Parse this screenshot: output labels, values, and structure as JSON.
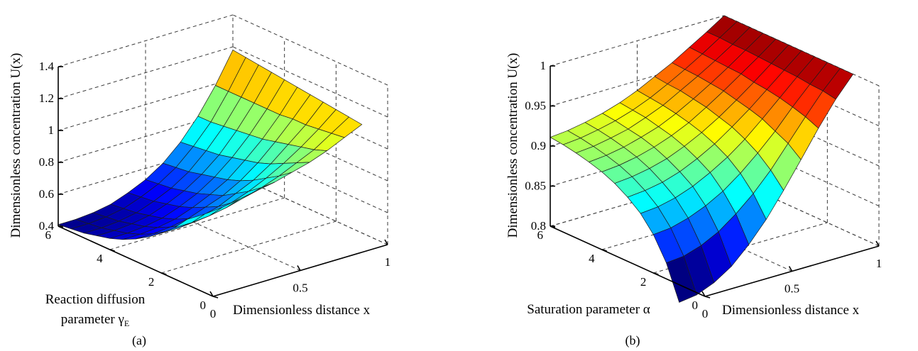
{
  "chart_data": [
    {
      "type": "surface",
      "caption": "(a)",
      "xlabel": "Dimensionless distance x",
      "ylabel": "Reaction diffusion parameter γE",
      "ylabel_lines": [
        "Reaction diffusion",
        "parameter γ"
      ],
      "ylabel_subscript": "E",
      "zlabel": "Dimensionless concentration U(x)",
      "x_ticks": [
        "0",
        "0.5",
        "1"
      ],
      "y_ticks": [
        "0",
        "2",
        "4",
        "6"
      ],
      "z_ticks": [
        "0.4",
        "0.6",
        "0.8",
        "1",
        "1.2",
        "1.4"
      ],
      "xlim": [
        0,
        1
      ],
      "ylim": [
        0,
        6
      ],
      "zlim": [
        0.4,
        1.4
      ],
      "grid": true,
      "colormap": "jet",
      "x": [
        0,
        0.1,
        0.2,
        0.3,
        0.4,
        0.5,
        0.6,
        0.7,
        0.8,
        0.9,
        1.0
      ],
      "y": [
        1,
        1.5,
        2,
        2.5,
        3,
        3.5,
        4,
        4.5,
        5,
        5.5,
        6
      ],
      "z": [
        [
          0.81,
          0.81,
          0.82,
          0.84,
          0.86,
          0.88,
          0.91,
          0.94,
          0.98,
          1.03,
          1.08
        ],
        [
          0.72,
          0.72,
          0.73,
          0.75,
          0.78,
          0.81,
          0.85,
          0.9,
          0.95,
          1.02,
          1.09
        ],
        [
          0.65,
          0.65,
          0.66,
          0.68,
          0.71,
          0.75,
          0.8,
          0.86,
          0.93,
          1.01,
          1.1
        ],
        [
          0.59,
          0.59,
          0.6,
          0.62,
          0.65,
          0.7,
          0.75,
          0.82,
          0.91,
          1.0,
          1.11
        ],
        [
          0.54,
          0.54,
          0.55,
          0.57,
          0.61,
          0.65,
          0.71,
          0.79,
          0.89,
          1.0,
          1.12
        ],
        [
          0.5,
          0.5,
          0.51,
          0.53,
          0.57,
          0.62,
          0.68,
          0.77,
          0.87,
          0.99,
          1.13
        ],
        [
          0.47,
          0.47,
          0.48,
          0.5,
          0.54,
          0.59,
          0.66,
          0.75,
          0.86,
          0.99,
          1.14
        ],
        [
          0.45,
          0.45,
          0.46,
          0.48,
          0.52,
          0.57,
          0.64,
          0.73,
          0.85,
          0.99,
          1.15
        ],
        [
          0.43,
          0.43,
          0.44,
          0.46,
          0.5,
          0.55,
          0.62,
          0.72,
          0.84,
          0.99,
          1.16
        ],
        [
          0.42,
          0.42,
          0.43,
          0.45,
          0.49,
          0.54,
          0.61,
          0.71,
          0.83,
          0.99,
          1.17
        ],
        [
          0.41,
          0.41,
          0.42,
          0.44,
          0.48,
          0.53,
          0.6,
          0.7,
          0.83,
          0.99,
          1.18
        ]
      ]
    },
    {
      "type": "surface",
      "caption": "(b)",
      "xlabel": "Dimensionless distance x",
      "ylabel": "Saturation parameter α",
      "zlabel": "Dimensionless concentration U(x)",
      "x_ticks": [
        "0",
        "0.5",
        "1"
      ],
      "y_ticks": [
        "0",
        "2",
        "4",
        "6"
      ],
      "z_ticks": [
        "0.8",
        "0.85",
        "0.9",
        "0.95",
        "1"
      ],
      "xlim": [
        0,
        1
      ],
      "ylim": [
        0,
        6
      ],
      "zlim": [
        0.8,
        1.0
      ],
      "grid": true,
      "colormap": "jet",
      "x": [
        0,
        0.1,
        0.2,
        0.3,
        0.4,
        0.5,
        0.6,
        0.7,
        0.8,
        0.9,
        1.0
      ],
      "y": [
        1,
        1.5,
        2,
        2.5,
        3,
        3.5,
        4,
        4.5,
        5,
        5.5,
        6
      ],
      "z": [
        [
          0.778,
          0.781,
          0.79,
          0.804,
          0.825,
          0.85,
          0.88,
          0.912,
          0.945,
          0.975,
          1.0
        ],
        [
          0.82,
          0.822,
          0.829,
          0.84,
          0.856,
          0.875,
          0.898,
          0.925,
          0.952,
          0.978,
          1.0
        ],
        [
          0.848,
          0.85,
          0.856,
          0.865,
          0.877,
          0.893,
          0.912,
          0.933,
          0.957,
          0.979,
          1.0
        ],
        [
          0.867,
          0.869,
          0.874,
          0.882,
          0.893,
          0.906,
          0.922,
          0.941,
          0.961,
          0.981,
          1.0
        ],
        [
          0.88,
          0.882,
          0.886,
          0.893,
          0.903,
          0.915,
          0.93,
          0.946,
          0.964,
          0.982,
          1.0
        ],
        [
          0.89,
          0.892,
          0.896,
          0.902,
          0.911,
          0.922,
          0.935,
          0.95,
          0.966,
          0.983,
          1.0
        ],
        [
          0.897,
          0.899,
          0.903,
          0.909,
          0.917,
          0.927,
          0.94,
          0.954,
          0.969,
          0.984,
          1.0
        ],
        [
          0.902,
          0.904,
          0.908,
          0.914,
          0.921,
          0.931,
          0.943,
          0.956,
          0.97,
          0.985,
          1.0
        ],
        [
          0.906,
          0.908,
          0.912,
          0.917,
          0.925,
          0.934,
          0.946,
          0.958,
          0.971,
          0.985,
          1.0
        ],
        [
          0.909,
          0.911,
          0.915,
          0.92,
          0.927,
          0.936,
          0.947,
          0.959,
          0.972,
          0.986,
          1.0
        ],
        [
          0.911,
          0.913,
          0.917,
          0.922,
          0.929,
          0.938,
          0.949,
          0.96,
          0.973,
          0.986,
          1.0
        ]
      ]
    }
  ]
}
